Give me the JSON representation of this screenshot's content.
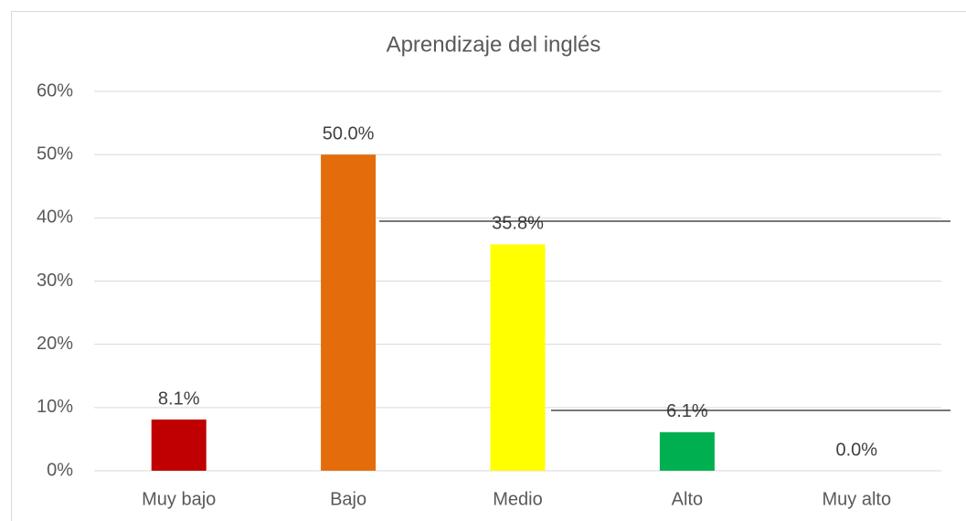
{
  "chart_data": {
    "type": "bar",
    "title": "Aprendizaje del inglés",
    "categories": [
      "Muy bajo",
      "Bajo",
      "Medio",
      "Alto",
      "Muy alto"
    ],
    "values": [
      8.1,
      50.0,
      35.8,
      6.1,
      0.0
    ],
    "value_labels": [
      "8.1%",
      "50.0%",
      "35.8%",
      "6.1%",
      "0.0%"
    ],
    "colors": [
      "#c00000",
      "#e46c0a",
      "#ffff00",
      "#00b050",
      "#0070c0"
    ],
    "ylim": [
      0,
      60
    ],
    "yticks": [
      {
        "value": 0,
        "label": "0%"
      },
      {
        "value": 10,
        "label": "10%"
      },
      {
        "value": 20,
        "label": "20%"
      },
      {
        "value": 30,
        "label": "30%"
      },
      {
        "value": 40,
        "label": "40%"
      },
      {
        "value": 50,
        "label": "50%"
      },
      {
        "value": 60,
        "label": "60%"
      }
    ],
    "grid": true
  }
}
